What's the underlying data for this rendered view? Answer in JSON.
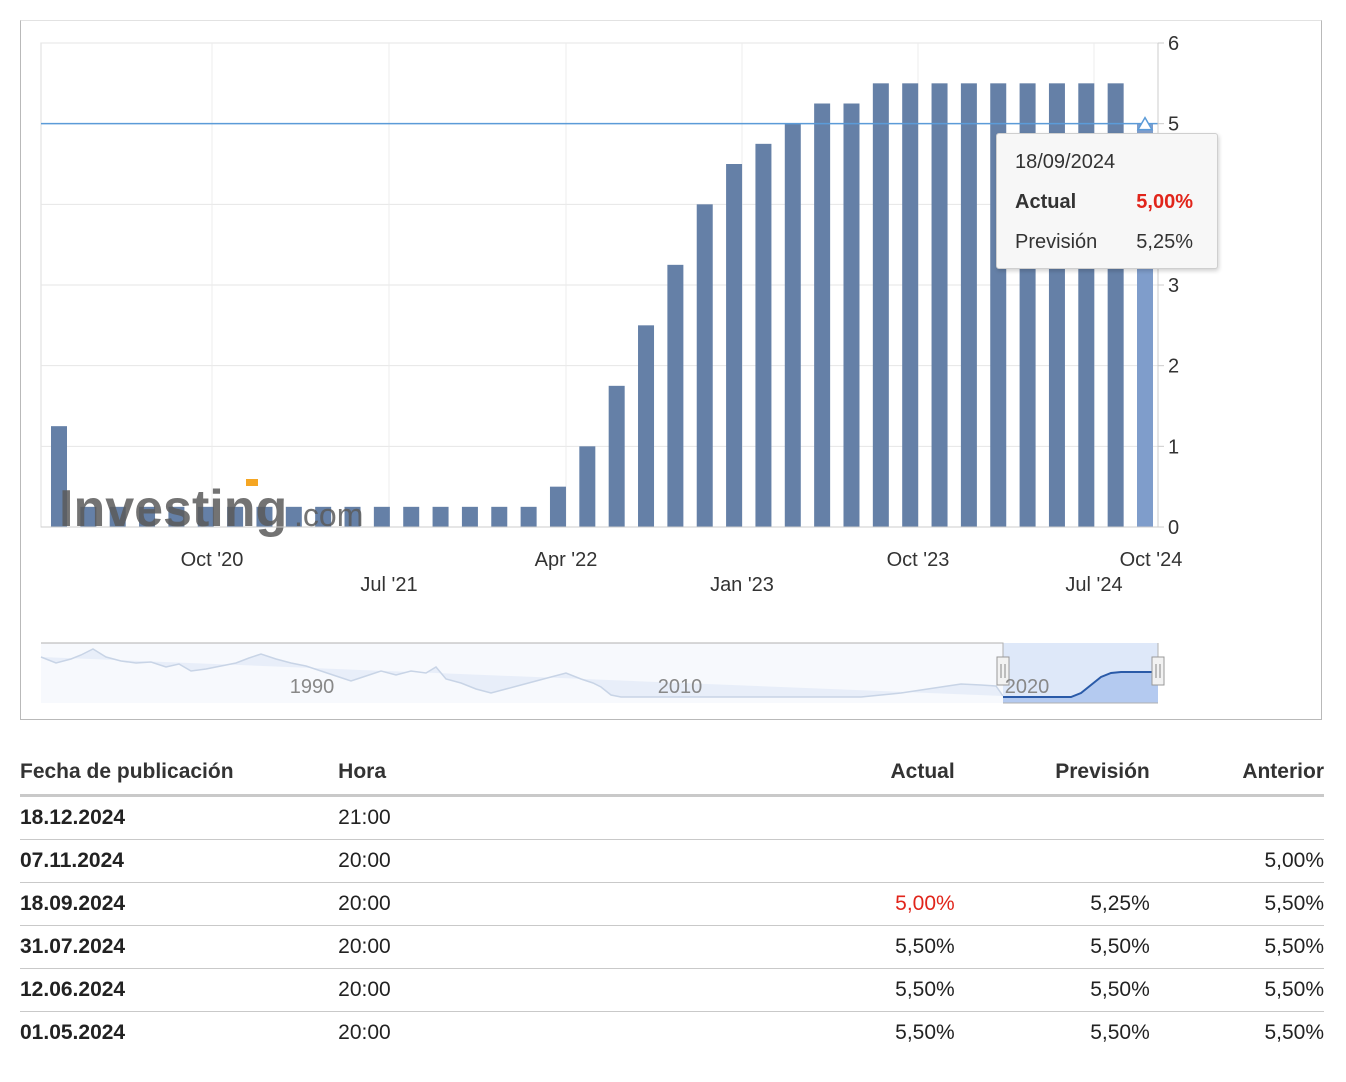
{
  "chart_data": {
    "type": "bar",
    "x_tick_labels": [
      "Oct '20",
      "Jul '21",
      "Apr '22",
      "Jan '23",
      "Oct '23",
      "Jul '24",
      "Oct '24"
    ],
    "y_ticks": [
      0,
      1,
      2,
      3,
      5,
      6
    ],
    "ylim": [
      0,
      6
    ],
    "values": [
      1.25,
      0.25,
      0.25,
      0.25,
      0.25,
      0.25,
      0.25,
      0.25,
      0.25,
      0.25,
      0.25,
      0.25,
      0.25,
      0.25,
      0.25,
      0.25,
      0.25,
      0.5,
      1.0,
      1.75,
      2.5,
      3.25,
      4.0,
      4.5,
      4.75,
      5.0,
      5.25,
      5.25,
      5.5,
      5.5,
      5.5,
      5.5,
      5.5,
      5.5,
      5.5,
      5.5,
      5.5,
      5.0
    ],
    "forecast_line": 5.0,
    "grid": true,
    "watermark": "Investing.com",
    "navigator": {
      "labels": [
        "1990",
        "2010",
        "2020"
      ]
    },
    "tooltip": {
      "date": "18/09/2024",
      "actual_label": "Actual",
      "actual_value": "5,00%",
      "forecast_label": "Previsión",
      "forecast_value": "5,25%"
    },
    "colors": {
      "bar": "#6580a7",
      "bar_latest": "#7f9dcb",
      "line": "#5b9bd8",
      "highlight": "#e1251b"
    }
  },
  "table": {
    "headers": {
      "date": "Fecha de publicación",
      "time": "Hora",
      "actual": "Actual",
      "forecast": "Previsión",
      "previous": "Anterior"
    },
    "rows": [
      {
        "date": "18.12.2024",
        "time": "21:00",
        "actual": "",
        "forecast": "",
        "previous": ""
      },
      {
        "date": "07.11.2024",
        "time": "20:00",
        "actual": "",
        "forecast": "",
        "previous": "5,00%"
      },
      {
        "date": "18.09.2024",
        "time": "20:00",
        "actual": "5,00%",
        "forecast": "5,25%",
        "previous": "5,50%"
      },
      {
        "date": "31.07.2024",
        "time": "20:00",
        "actual": "5,50%",
        "forecast": "5,50%",
        "previous": "5,50%"
      },
      {
        "date": "12.06.2024",
        "time": "20:00",
        "actual": "5,50%",
        "forecast": "5,50%",
        "previous": "5,50%"
      },
      {
        "date": "01.05.2024",
        "time": "20:00",
        "actual": "5,50%",
        "forecast": "5,50%",
        "previous": "5,50%"
      }
    ]
  }
}
